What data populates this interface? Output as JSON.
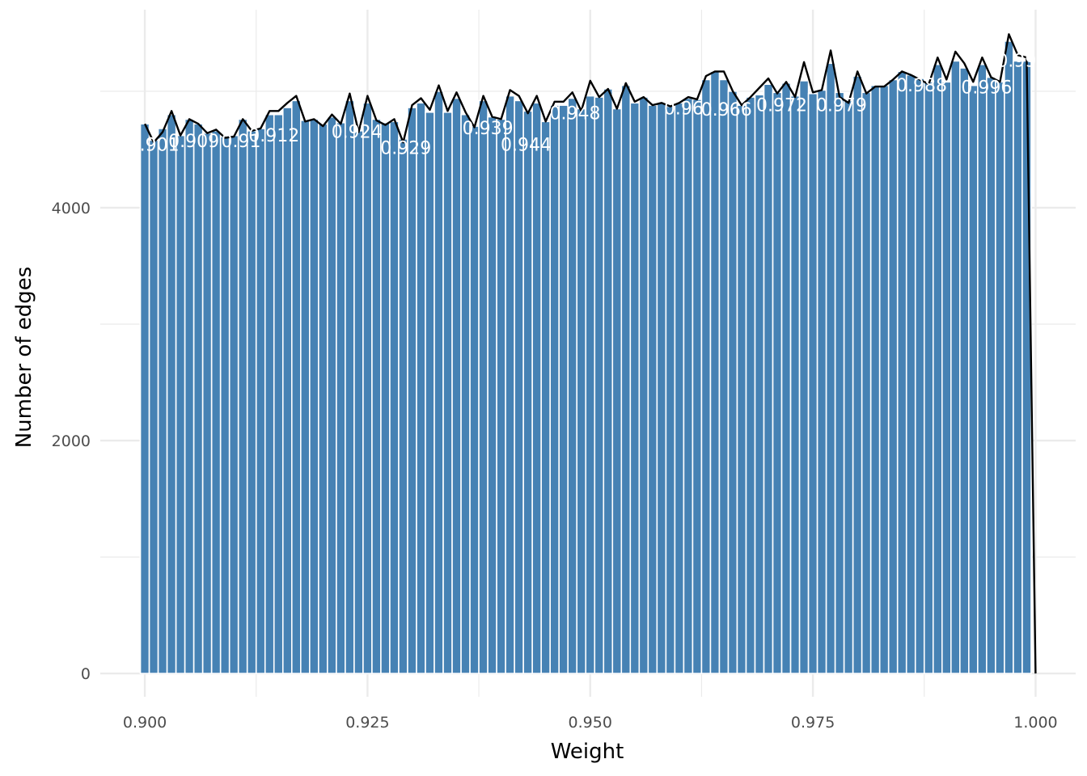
{
  "chart_data": {
    "type": "bar",
    "xlabel": "Weight",
    "ylabel": "Number of edges",
    "xlim": [
      0.895,
      1.0045
    ],
    "ylim": [
      -200,
      5700
    ],
    "x_ticks": [
      "0.900",
      "0.925",
      "0.950",
      "0.975",
      "1.000"
    ],
    "y_ticks": [
      "0",
      "2000",
      "4000"
    ],
    "grid": true,
    "bar_color": "#4682B4",
    "line_color": "#000000",
    "bar_width": 0.001,
    "series": [
      {
        "x": [
          0.9,
          0.901,
          0.902,
          0.903,
          0.904,
          0.905,
          0.906,
          0.907,
          0.908,
          0.909,
          0.91,
          0.911,
          0.912,
          0.913,
          0.914,
          0.915,
          0.916,
          0.917,
          0.918,
          0.919,
          0.92,
          0.921,
          0.922,
          0.923,
          0.924,
          0.925,
          0.926,
          0.927,
          0.928,
          0.929,
          0.93,
          0.931,
          0.932,
          0.933,
          0.934,
          0.935,
          0.936,
          0.937,
          0.938,
          0.939,
          0.94,
          0.941,
          0.942,
          0.943,
          0.944,
          0.945,
          0.946,
          0.947,
          0.948,
          0.949,
          0.95,
          0.951,
          0.952,
          0.953,
          0.954,
          0.955,
          0.956,
          0.957,
          0.958,
          0.959,
          0.96,
          0.961,
          0.962,
          0.963,
          0.964,
          0.965,
          0.966,
          0.967,
          0.968,
          0.969,
          0.97,
          0.971,
          0.972,
          0.973,
          0.974,
          0.975,
          0.976,
          0.977,
          0.978,
          0.979,
          0.98,
          0.981,
          0.982,
          0.983,
          0.984,
          0.985,
          0.986,
          0.987,
          0.988,
          0.989,
          0.99,
          0.991,
          0.992,
          0.993,
          0.994,
          0.995,
          0.996,
          0.997,
          0.998,
          0.999,
          1.0
        ],
        "values": [
          4720,
          4580,
          4680,
          4800,
          4620,
          4760,
          4720,
          4640,
          4660,
          4610,
          4620,
          4760,
          4660,
          4680,
          4800,
          4800,
          4860,
          4920,
          4750,
          4760,
          4720,
          4780,
          4730,
          4920,
          4660,
          4900,
          4760,
          4730,
          4740,
          4590,
          4860,
          4900,
          4820,
          5000,
          4820,
          4940,
          4800,
          4700,
          4920,
          4780,
          4760,
          4960,
          4920,
          4830,
          4900,
          4740,
          4880,
          4880,
          4940,
          4850,
          4960,
          4950,
          5020,
          4850,
          5050,
          4900,
          4950,
          4880,
          4900,
          4870,
          4900,
          4940,
          4930,
          5100,
          5170,
          5100,
          5000,
          4880,
          4950,
          4970,
          5060,
          4990,
          5070,
          4960,
          5090,
          4980,
          5010,
          5240,
          4990,
          4920,
          5130,
          4990,
          5050,
          5050,
          5100,
          5170,
          5140,
          5110,
          5080,
          5230,
          5080,
          5260,
          5200,
          5050,
          5230,
          5120,
          5080,
          5430,
          5260,
          5260,
          0
        ],
        "line_values": [
          4720,
          4560,
          4650,
          4830,
          4620,
          4760,
          4720,
          4640,
          4670,
          4600,
          4610,
          4760,
          4660,
          4680,
          4830,
          4830,
          4900,
          4960,
          4740,
          4760,
          4700,
          4800,
          4720,
          4980,
          4650,
          4960,
          4750,
          4710,
          4760,
          4560,
          4880,
          4940,
          4840,
          5050,
          4830,
          4990,
          4820,
          4690,
          4960,
          4780,
          4760,
          5010,
          4960,
          4810,
          4960,
          4740,
          4910,
          4910,
          4990,
          4830,
          5090,
          4950,
          5020,
          4850,
          5070,
          4910,
          4950,
          4880,
          4900,
          4870,
          4900,
          4950,
          4930,
          5130,
          5170,
          5170,
          5000,
          4880,
          4950,
          5030,
          5110,
          4980,
          5080,
          4950,
          5250,
          4990,
          5010,
          5350,
          4950,
          4900,
          5170,
          4980,
          5040,
          5040,
          5100,
          5170,
          5140,
          5100,
          5060,
          5290,
          5100,
          5340,
          5240,
          5080,
          5290,
          5120,
          5080,
          5490,
          5310,
          5290,
          0
        ]
      }
    ],
    "data_labels": [
      {
        "text": "0.901",
        "x": 0.901,
        "y": 4490
      },
      {
        "text": "0.909",
        "x": 0.9055,
        "y": 4520
      },
      {
        "text": "0.91",
        "x": 0.9108,
        "y": 4520
      },
      {
        "text": "0.912",
        "x": 0.9145,
        "y": 4570
      },
      {
        "text": "0.924",
        "x": 0.9238,
        "y": 4600
      },
      {
        "text": "0.929",
        "x": 0.9293,
        "y": 4460
      },
      {
        "text": "0.939",
        "x": 0.9385,
        "y": 4630
      },
      {
        "text": "0.944",
        "x": 0.9428,
        "y": 4490
      },
      {
        "text": "0.948",
        "x": 0.9483,
        "y": 4760
      },
      {
        "text": "0.96",
        "x": 0.9605,
        "y": 4800
      },
      {
        "text": "0.966",
        "x": 0.9653,
        "y": 4790
      },
      {
        "text": "0.972",
        "x": 0.9715,
        "y": 4830
      },
      {
        "text": "0.979",
        "x": 0.9782,
        "y": 4830
      },
      {
        "text": "0.988",
        "x": 0.9872,
        "y": 5000
      },
      {
        "text": "0.996",
        "x": 0.9945,
        "y": 4980
      },
      {
        "text": "0.999",
        "x": 0.9985,
        "y": 5210
      }
    ]
  }
}
